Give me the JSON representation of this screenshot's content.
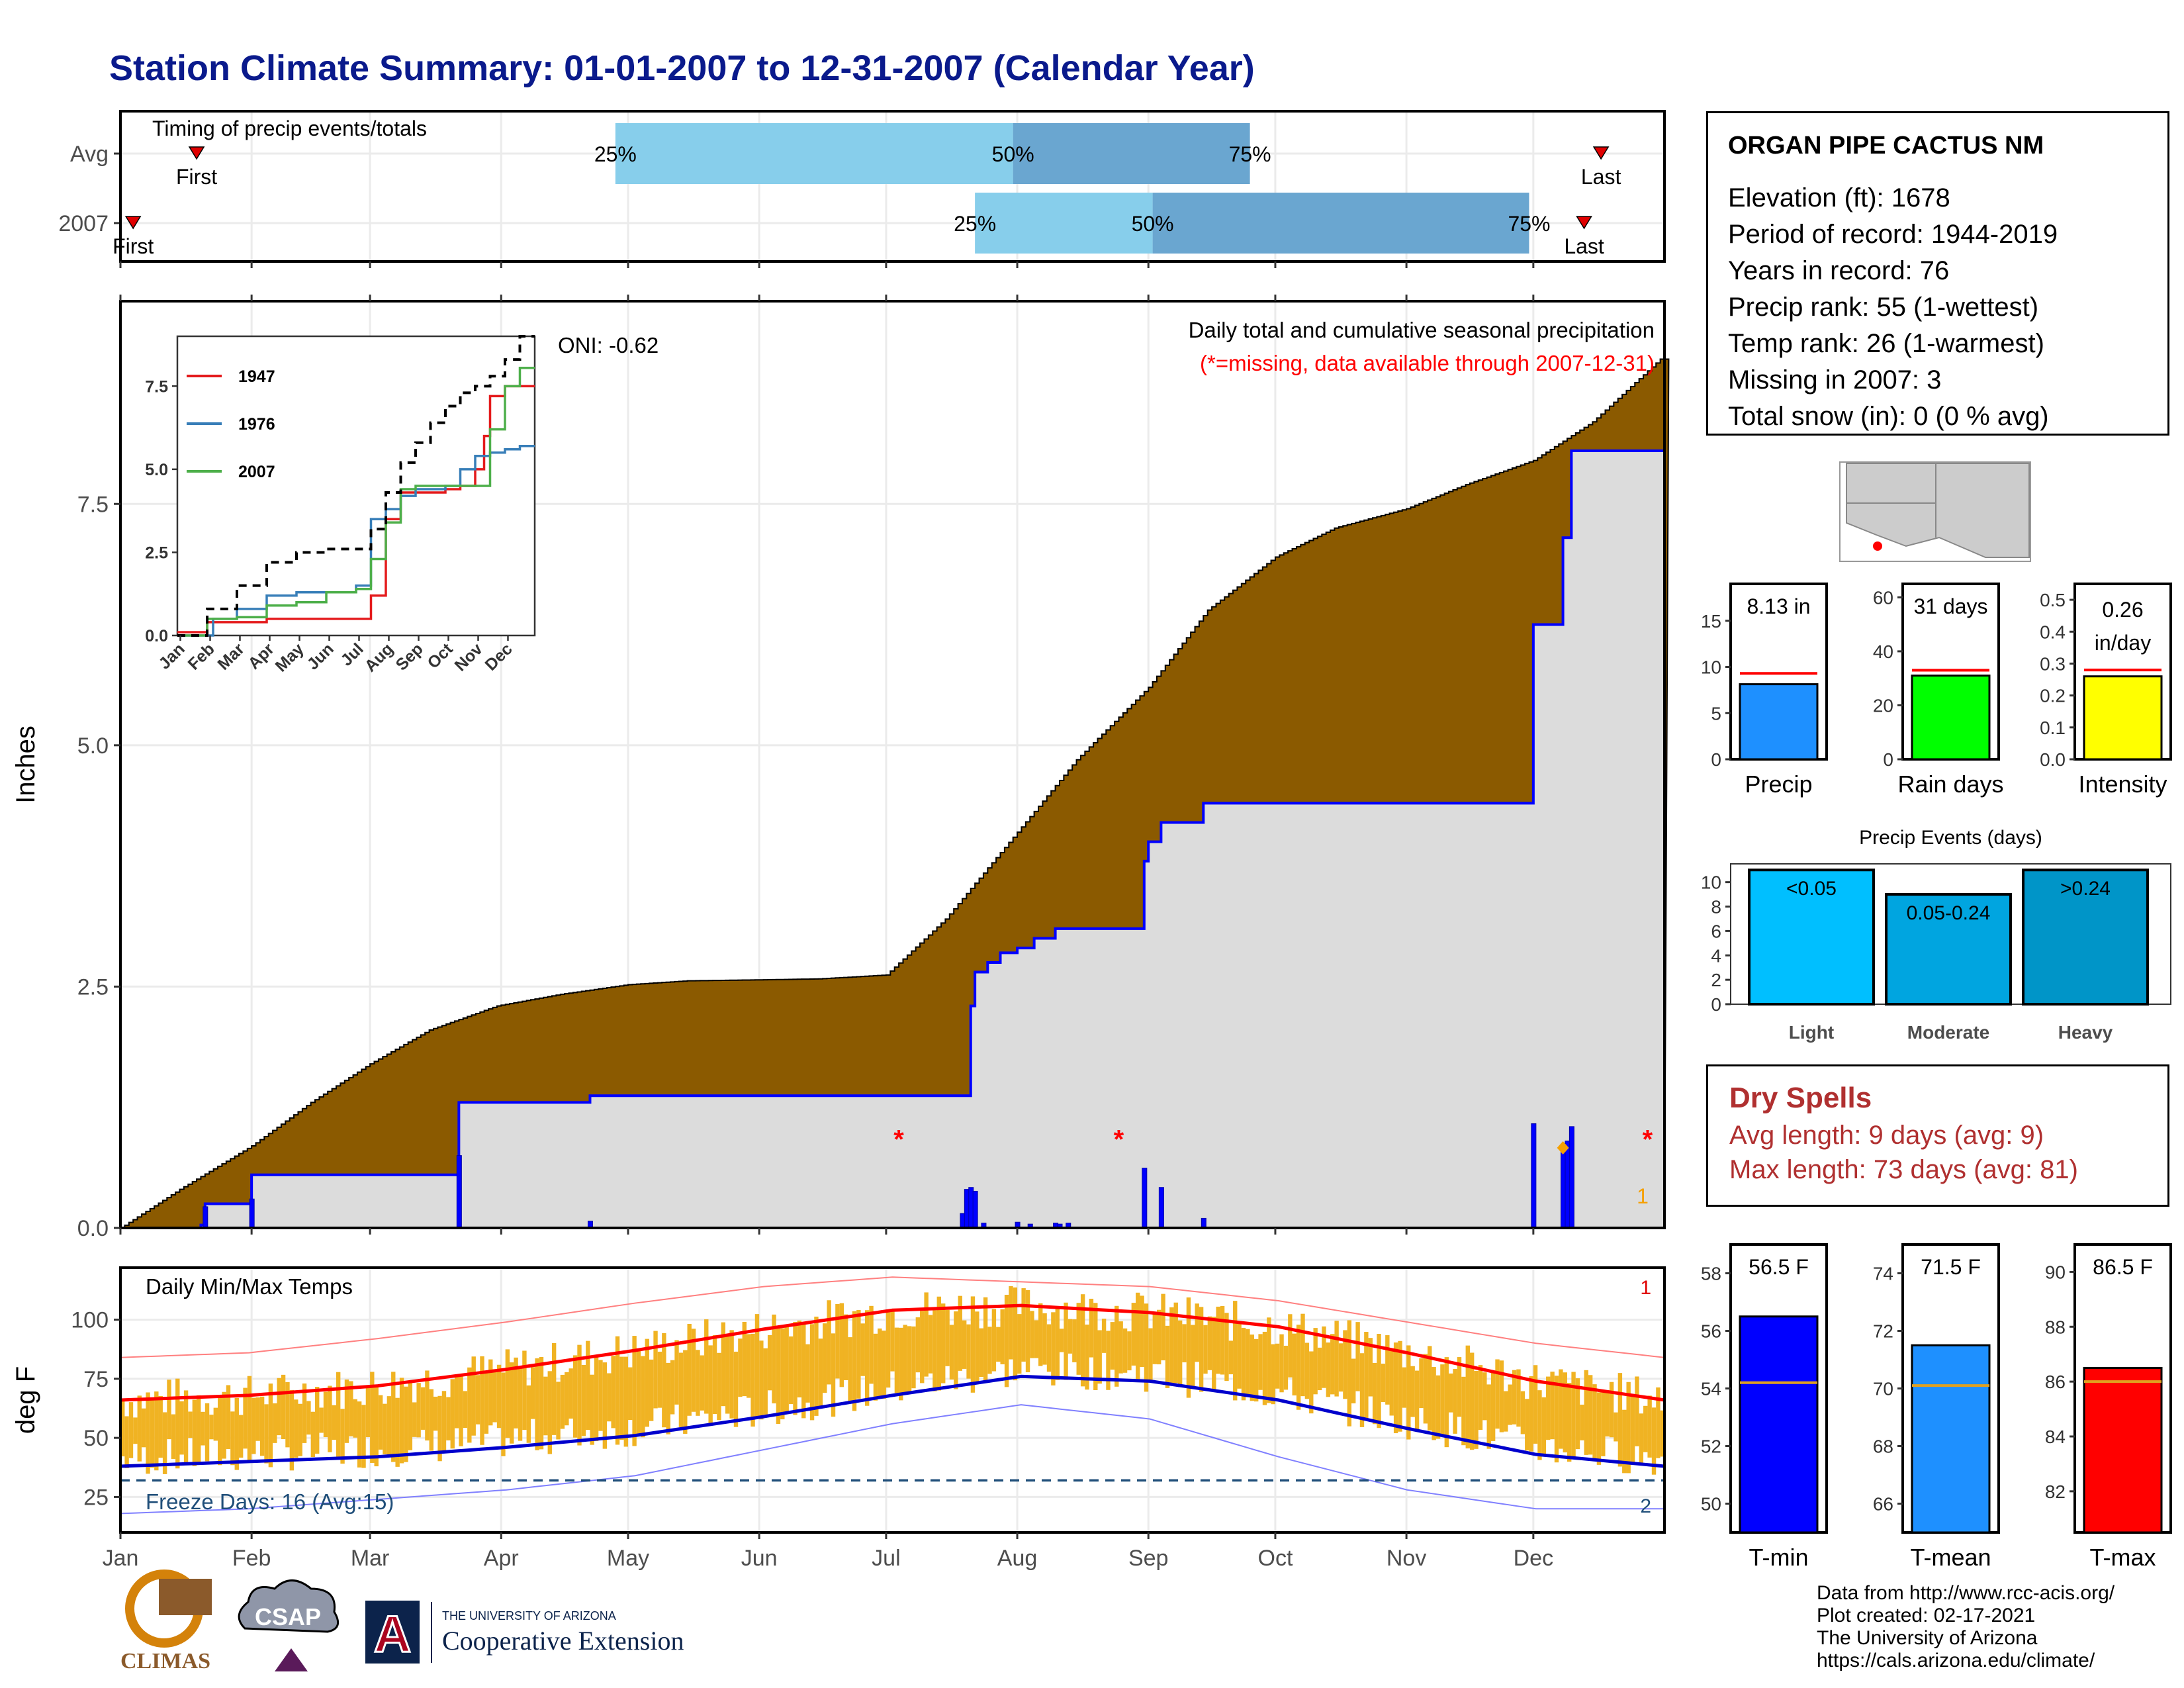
{
  "title": "Station Climate Summary: 01-01-2007 to 12-31-2007 (Calendar Year)",
  "colors": {
    "title": "#0a1a8c",
    "cumulative_avg": "#8b5a00",
    "cumulative_year": "#dcdcdc",
    "year_line": "#0000ff",
    "missing": "#ff0000",
    "temp_bar": "#f0b323",
    "tmax_avg": "#ff0000",
    "tmin_avg": "#0000cc",
    "bar_precip": "#1e90ff",
    "bar_raindays": "#00ff00",
    "bar_intensity": "#ffff00",
    "light": "#00bfff",
    "moderate": "#00a5e0",
    "heavy": "#0095c8",
    "tmin": "#0000ff",
    "tmean": "#1e90ff",
    "tmax": "#ff0000"
  },
  "timing": {
    "label": "Timing of precip events/totals",
    "rows": [
      {
        "name": "Avg",
        "first_label": "First",
        "last_label": "Last",
        "first": "01-19",
        "p25": "04-28",
        "p50": "07-31",
        "p75": "09-25",
        "last": "12-17"
      },
      {
        "name": "2007",
        "first_label": "First",
        "last_label": "Last",
        "first": "01-04",
        "p25": "07-22",
        "p50": "09-02",
        "p75": "11-30",
        "last": "12-13"
      }
    ],
    "pct_labels": [
      "25%",
      "50%",
      "75%"
    ]
  },
  "station": {
    "name": "ORGAN PIPE CACTUS NM",
    "lines": [
      "Elevation (ft): 1678",
      "Period of record: 1944-2019",
      "Years in record: 76",
      "Precip rank: 55 (1-wettest)",
      "Temp rank: 26 (1-warmest)",
      "Missing in 2007: 3",
      "Total snow (in): 0 (0 % avg)"
    ]
  },
  "main_chart": {
    "title": "Daily total and cumulative seasonal precipitation",
    "subtitle": "(*=missing, data available through 2007-12-31)",
    "ylabel": "Inches",
    "oni": "ONI: -0.62",
    "ylim": [
      0,
      9.6
    ],
    "yticks": [
      "0.0",
      "2.5",
      "5.0",
      "7.5"
    ],
    "count_label": "1"
  },
  "chart_data": [
    {
      "type": "area",
      "title": "Daily total and cumulative seasonal precipitation",
      "ylabel": "Inches",
      "series": [
        {
          "name": "Average cumulative precipitation",
          "x": [
            "01-01",
            "01-15",
            "02-01",
            "02-15",
            "03-01",
            "03-15",
            "03-31",
            "04-15",
            "05-01",
            "05-15",
            "06-01",
            "06-15",
            "07-01",
            "07-15",
            "08-01",
            "08-15",
            "09-01",
            "09-15",
            "10-01",
            "10-15",
            "11-01",
            "11-15",
            "12-01",
            "12-15",
            "12-31"
          ],
          "values": [
            0.0,
            0.4,
            0.85,
            1.3,
            1.7,
            2.05,
            2.3,
            2.42,
            2.52,
            2.56,
            2.57,
            2.58,
            2.62,
            3.2,
            4.1,
            4.85,
            5.6,
            6.4,
            6.95,
            7.25,
            7.45,
            7.7,
            7.95,
            8.35,
            9.0
          ]
        },
        {
          "name": "2007 cumulative precipitation",
          "x": [
            "01-01",
            "01-20",
            "01-21",
            "01-31",
            "02-01",
            "03-21",
            "03-22",
            "04-21",
            "04-22",
            "07-20",
            "07-21",
            "07-22",
            "07-25",
            "07-28",
            "08-01",
            "08-05",
            "08-10",
            "08-31",
            "09-01",
            "09-04",
            "09-14",
            "11-30",
            "12-01",
            "12-07",
            "12-08",
            "12-10",
            "12-31"
          ],
          "values": [
            0.0,
            0.03,
            0.25,
            0.25,
            0.55,
            0.55,
            1.3,
            1.3,
            1.37,
            1.37,
            2.3,
            2.65,
            2.75,
            2.85,
            2.9,
            3.0,
            3.1,
            3.8,
            4.0,
            4.2,
            4.4,
            4.4,
            6.25,
            6.25,
            7.15,
            8.05,
            8.05
          ]
        },
        {
          "name": "2007 daily precipitation",
          "x": [
            "01-21",
            "02-01",
            "03-22",
            "04-22",
            "07-19",
            "07-20",
            "07-21",
            "07-22",
            "07-24",
            "08-01",
            "08-04",
            "08-10",
            "08-11",
            "08-13",
            "08-31",
            "09-04",
            "09-14",
            "12-01",
            "12-08",
            "12-09",
            "12-10"
          ],
          "values": [
            0.22,
            0.3,
            0.75,
            0.07,
            0.15,
            0.4,
            0.42,
            0.38,
            0.05,
            0.06,
            0.04,
            0.05,
            0.04,
            0.05,
            0.62,
            0.42,
            0.1,
            1.08,
            0.8,
            0.9,
            1.05
          ]
        }
      ],
      "missing_dates": [
        "07-04",
        "08-25",
        "12-28"
      ]
    },
    {
      "type": "line",
      "title": "",
      "legend": [
        "1947",
        "1976",
        "2007"
      ],
      "x_labels": [
        "Jan",
        "Feb",
        "Mar",
        "Apr",
        "May",
        "Jun",
        "Jul",
        "Aug",
        "Sep",
        "Oct",
        "Nov",
        "Dec"
      ],
      "yticks": [
        "0.0",
        "2.5",
        "5.0",
        "7.5"
      ],
      "series": [
        {
          "name": "1947",
          "x": [
            0,
            1,
            2,
            3,
            4,
            5,
            6,
            6.4,
            6.5,
            7,
            7.5,
            8,
            8.3,
            9,
            9.5,
            10,
            10.3,
            10.5,
            11,
            11.5
          ],
          "values": [
            0.1,
            0.4,
            0.4,
            0.5,
            0.5,
            0.5,
            0.5,
            0.5,
            1.2,
            3.5,
            4.3,
            4.3,
            4.3,
            4.4,
            4.5,
            5.0,
            6.0,
            7.2,
            7.5,
            7.5
          ]
        },
        {
          "name": "1976",
          "x": [
            0,
            0.5,
            1.2,
            2,
            3,
            4,
            5,
            6,
            6.5,
            7,
            7.5,
            8,
            9,
            9.5,
            10,
            10.5,
            11,
            11.5
          ],
          "values": [
            0.0,
            0.0,
            0.5,
            0.8,
            1.2,
            1.3,
            1.3,
            1.5,
            3.5,
            3.8,
            4.2,
            4.4,
            4.5,
            5.0,
            5.4,
            5.5,
            5.6,
            5.7
          ]
        },
        {
          "name": "2007",
          "x": [
            0,
            1,
            2,
            3,
            4,
            5,
            6,
            6.5,
            7,
            7.5,
            8,
            8.5,
            9,
            9.5,
            10,
            10.5,
            11,
            11.5
          ],
          "values": [
            0.0,
            0.5,
            0.55,
            0.9,
            1.0,
            1.3,
            1.4,
            2.3,
            3.4,
            4.4,
            4.5,
            4.5,
            4.5,
            4.5,
            4.5,
            6.2,
            7.5,
            8.05
          ]
        },
        {
          "name": "Average",
          "x": [
            0,
            1,
            2,
            3,
            4,
            5,
            6,
            6.5,
            7,
            7.5,
            8,
            8.5,
            9,
            9.5,
            10,
            10.5,
            11,
            11.5
          ],
          "values": [
            0.0,
            0.8,
            1.5,
            2.2,
            2.5,
            2.6,
            2.6,
            3.2,
            4.3,
            5.2,
            5.8,
            6.4,
            6.9,
            7.3,
            7.5,
            7.8,
            8.3,
            9.0
          ]
        }
      ]
    },
    {
      "type": "bar",
      "title": "",
      "categories": [
        "Precip"
      ],
      "values": [
        8.13
      ],
      "average": 9.3,
      "label": "8.13 in",
      "ylim": [
        0,
        19
      ],
      "yticks": [
        "0",
        "5",
        "10",
        "15"
      ]
    },
    {
      "type": "bar",
      "title": "",
      "categories": [
        "Rain days"
      ],
      "values": [
        31
      ],
      "average": 33,
      "label": "31 days",
      "ylim": [
        0,
        65
      ],
      "yticks": [
        "0",
        "20",
        "40",
        "60"
      ]
    },
    {
      "type": "bar",
      "title": "",
      "categories": [
        "Intensity"
      ],
      "values": [
        0.26
      ],
      "average": 0.28,
      "label": "0.26 in/day",
      "ylim": [
        0,
        0.55
      ],
      "yticks": [
        "0.0",
        "0.1",
        "0.2",
        "0.3",
        "0.4",
        "0.5"
      ]
    },
    {
      "type": "bar",
      "title": "Precip Events (days)",
      "categories": [
        "Light",
        "Moderate",
        "Heavy"
      ],
      "bar_labels": [
        "<0.05",
        "0.05-0.24",
        ">0.24"
      ],
      "values": [
        11,
        9,
        11
      ],
      "ylim": [
        0,
        11.5
      ],
      "yticks": [
        "0",
        "2",
        "4",
        "6",
        "8",
        "10"
      ]
    },
    {
      "type": "bar",
      "title": "Daily Min/Max Temps",
      "ylabel": "deg F",
      "x_labels": [
        "Jan",
        "Feb",
        "Mar",
        "Apr",
        "May",
        "Jun",
        "Jul",
        "Aug",
        "Sep",
        "Oct",
        "Nov",
        "Dec"
      ],
      "yticks": [
        "25",
        "50",
        "75",
        "100"
      ],
      "ylim": [
        10,
        122
      ],
      "avg_tmax": {
        "x": [
          0,
          1,
          2,
          3,
          4,
          5,
          6,
          7,
          8,
          9,
          10,
          11,
          12
        ],
        "values": [
          66,
          68,
          72,
          79,
          87,
          96,
          104,
          106,
          103,
          97,
          86,
          74,
          66
        ]
      },
      "avg_tmin": {
        "x": [
          0,
          1,
          2,
          3,
          4,
          5,
          6,
          7,
          8,
          9,
          10,
          11,
          12
        ],
        "values": [
          38,
          40,
          42,
          46,
          51,
          59,
          68,
          76,
          74,
          66,
          54,
          43,
          38
        ]
      },
      "record_tmax": {
        "x": [
          0,
          1,
          2,
          3,
          4,
          5,
          6,
          7,
          8,
          9,
          10,
          11,
          12
        ],
        "values": [
          84,
          86,
          92,
          99,
          107,
          114,
          118,
          116,
          114,
          108,
          99,
          90,
          84
        ]
      },
      "record_tmin": {
        "x": [
          0,
          1,
          2,
          3,
          4,
          5,
          6,
          7,
          8,
          9,
          10,
          11,
          12
        ],
        "values": [
          18,
          20,
          24,
          28,
          34,
          45,
          56,
          64,
          58,
          42,
          28,
          20,
          20
        ]
      },
      "freeze_line": 32,
      "freeze_label": "Freeze Days: 16 (Avg:15)",
      "count_top": "1",
      "count_bottom": "2"
    },
    {
      "type": "bar",
      "title": "",
      "categories": [
        "T-min"
      ],
      "values": [
        56.5
      ],
      "average": 54.2,
      "label": "56.5 F",
      "ylim": [
        49,
        59
      ],
      "yticks": [
        "50",
        "52",
        "54",
        "56",
        "58"
      ]
    },
    {
      "type": "bar",
      "title": "",
      "categories": [
        "T-mean"
      ],
      "values": [
        71.5
      ],
      "average": 70.1,
      "label": "71.5 F",
      "ylim": [
        65,
        75
      ],
      "yticks": [
        "66",
        "68",
        "70",
        "72",
        "74"
      ]
    },
    {
      "type": "bar",
      "title": "",
      "categories": [
        "T-max"
      ],
      "values": [
        86.5
      ],
      "average": 86.0,
      "label": "86.5 F",
      "ylim": [
        80.5,
        91
      ],
      "yticks": [
        "82",
        "84",
        "86",
        "88",
        "90"
      ]
    }
  ],
  "months": [
    "Jan",
    "Feb",
    "Mar",
    "Apr",
    "May",
    "Jun",
    "Jul",
    "Aug",
    "Sep",
    "Oct",
    "Nov",
    "Dec"
  ],
  "dry_spells": {
    "title": "Dry Spells",
    "lines": [
      "Avg length: 9 days (avg: 9)",
      "Max length: 73 days (avg: 81)"
    ]
  },
  "credits": [
    "Data from http://www.rcc-acis.org/",
    "Plot created: 02-17-2021",
    "The University of Arizona",
    "https://cals.arizona.edu/climate/"
  ],
  "logos": {
    "climas": "CLIMAS",
    "csap": "CSAP",
    "ua_top": "THE UNIVERSITY OF ARIZONA",
    "ua_bottom": "Cooperative Extension"
  }
}
